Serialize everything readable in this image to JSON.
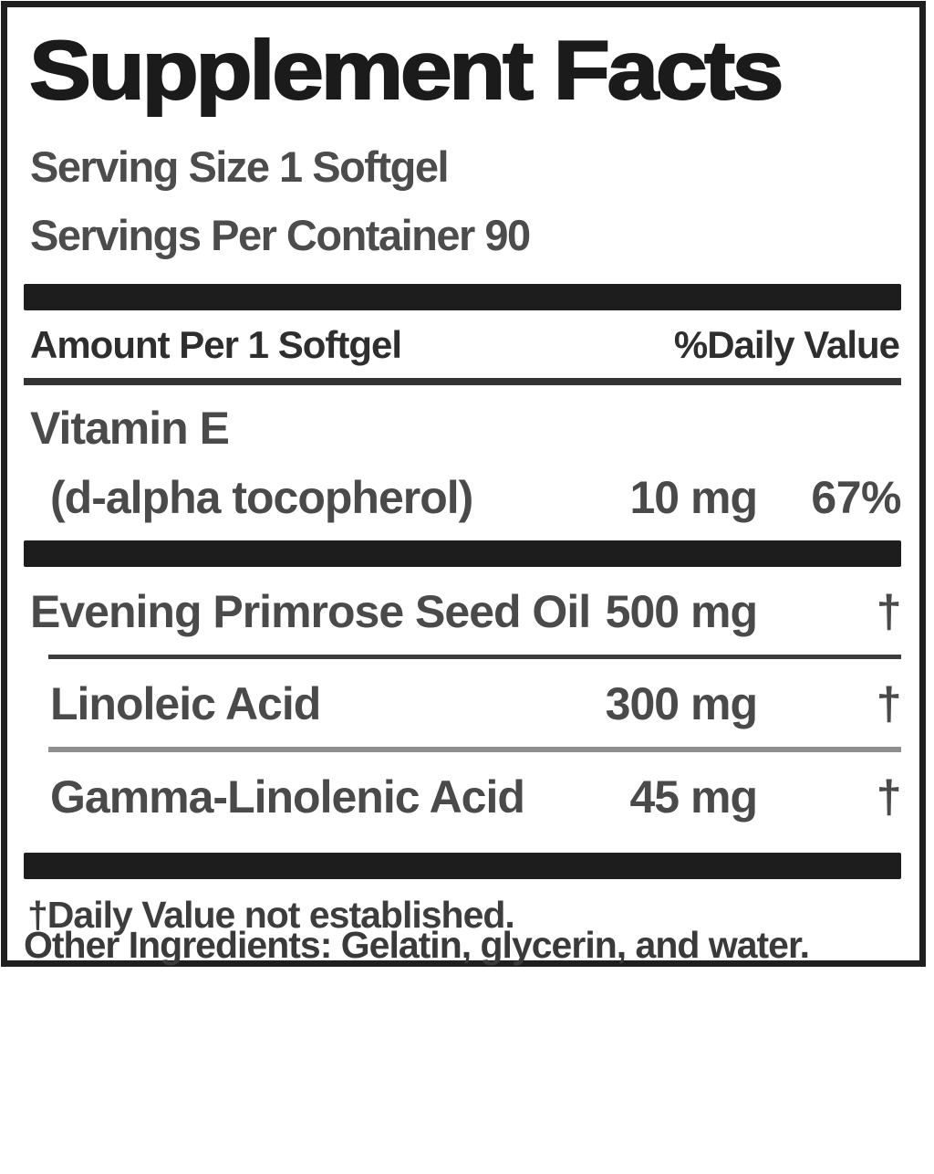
{
  "panel": {
    "title": "Supplement Facts",
    "serving_size": "Serving Size 1 Softgel",
    "servings_per_container": "Servings Per Container 90",
    "column_headers": {
      "amount": "Amount Per 1 Softgel",
      "daily_value": "%Daily Value"
    },
    "rows": [
      {
        "name": "Vitamin E",
        "name_line2": "(d-alpha tocopherol)",
        "amount": "10 mg",
        "daily_value": "67%"
      },
      {
        "name": "Evening Primrose Seed Oil",
        "amount": "500 mg",
        "daily_value": "†"
      },
      {
        "name": "Linoleic Acid",
        "amount": "300 mg",
        "daily_value": "†"
      },
      {
        "name": "Gamma-Linolenic Acid",
        "amount": "45 mg",
        "daily_value": "†"
      }
    ],
    "footnote": "†Daily Value not established."
  },
  "other_ingredients": "Other Ingredients: Gelatin, glycerin, and water.",
  "colors": {
    "border": "#1f1f1f",
    "bar": "#1d1d1d",
    "title_text": "#1b1b1b",
    "body_text": "#4a4a4a",
    "divider_dark": "#3c3c3c",
    "divider_light": "#8f8f8f"
  }
}
